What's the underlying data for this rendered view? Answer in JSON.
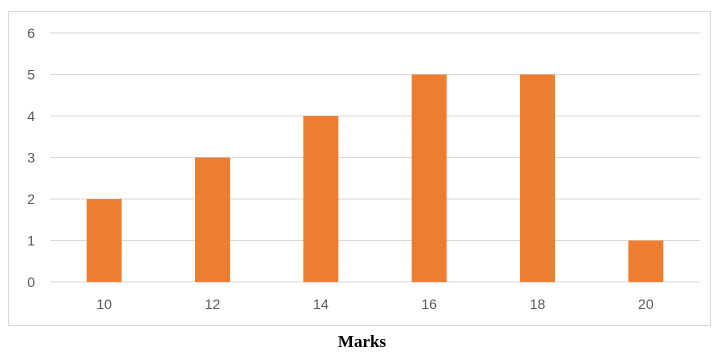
{
  "chart_data": {
    "type": "bar",
    "categories": [
      "10",
      "12",
      "14",
      "16",
      "18",
      "20"
    ],
    "values": [
      2,
      3,
      4,
      5,
      5,
      1
    ],
    "title": "",
    "xlabel": "Marks",
    "ylabel": "",
    "ylim": [
      0,
      6
    ],
    "yticks": [
      "0",
      "1",
      "2",
      "3",
      "4",
      "5",
      "6"
    ],
    "grid": true,
    "legend": "none",
    "colors": {
      "bar": "#ED7D31",
      "grid": "#d9d9d9",
      "tick_text": "#595959"
    }
  }
}
